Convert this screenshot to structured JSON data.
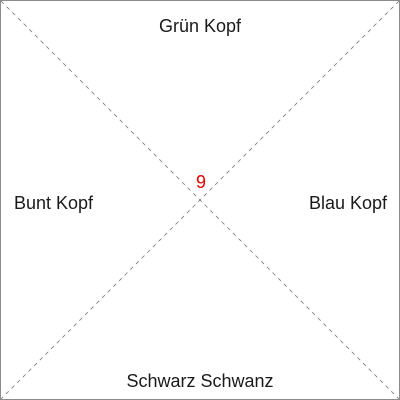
{
  "tile": {
    "number": "9",
    "number_color": "#e00000",
    "border_color": "#8c8c8c",
    "line_color": "#777777",
    "edges": {
      "top": "Grün Kopf",
      "right": "Blau Kopf",
      "bottom": "Schwarz Schwanz",
      "left": "Bunt Kopf"
    }
  }
}
